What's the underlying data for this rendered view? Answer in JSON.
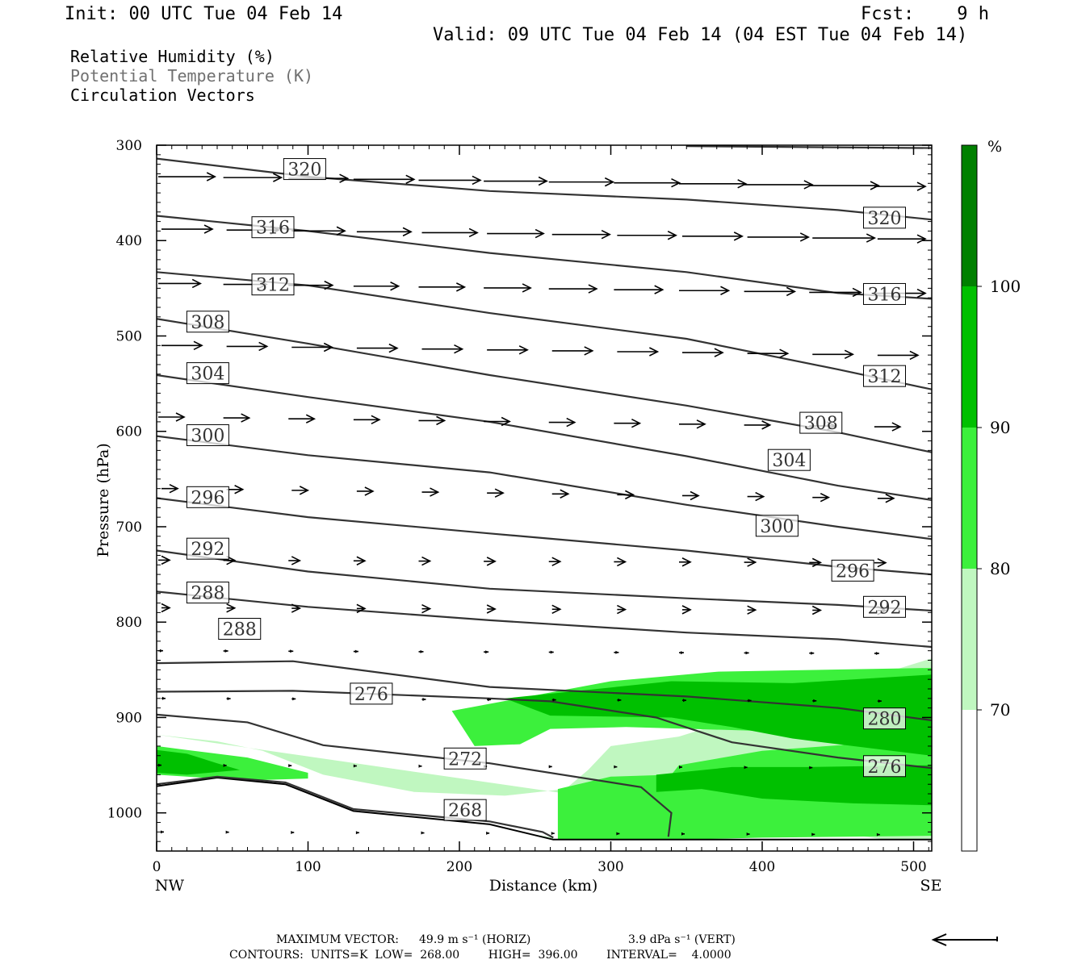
{
  "header": {
    "init": "Init: 00 UTC Tue 04 Feb 14",
    "fcst": "Fcst:    9 h",
    "valid": "Valid: 09 UTC Tue 04 Feb 14 (04 EST Tue 04 Feb 14)"
  },
  "legend": {
    "line1": "Relative Humidity (%)",
    "line2": "Potential Temperature (K)",
    "line3": "Circulation Vectors"
  },
  "footer": {
    "max_vector_label": "MAXIMUM VECTOR:",
    "max_vector_horiz": "49.9 m s⁻¹ (HORIZ)",
    "max_vector_vert": "3.9 dPa s⁻¹ (VERT)",
    "contours": "CONTOURS:  UNITS=K  LOW=  268.00        HIGH=  396.00        INTERVAL=    4.0000"
  },
  "colors": {
    "rh_70_80": "#c0f7c0",
    "rh_80_90": "#3cf03c",
    "rh_90_100": "#00c000",
    "rh_100": "#008000",
    "theta_line": "#333333"
  },
  "chart_data": {
    "type": "cross-section",
    "xlabel": "Distance (km)",
    "ylabel": "Pressure (hPa)",
    "xlim": [
      0,
      512
    ],
    "ylim": [
      1040,
      300
    ],
    "x_ticks": [
      0,
      100,
      200,
      300,
      400,
      500
    ],
    "y_ticks": [
      300,
      400,
      500,
      600,
      700,
      800,
      900,
      1000
    ],
    "x_end_labels": {
      "left": "NW",
      "right": "SE"
    },
    "colorbar": {
      "unit": "%",
      "levels": [
        70,
        80,
        90,
        100
      ]
    },
    "theta_contours": [
      {
        "value": 320,
        "points": [
          [
            0,
            314
          ],
          [
            100,
            333
          ],
          [
            220,
            348
          ],
          [
            350,
            357
          ],
          [
            450,
            368
          ],
          [
            512,
            378
          ]
        ],
        "labels": [
          [
            85,
            325
          ],
          [
            468,
            376
          ]
        ]
      },
      {
        "value": 316,
        "points": [
          [
            0,
            374
          ],
          [
            100,
            390
          ],
          [
            220,
            413
          ],
          [
            350,
            433
          ],
          [
            450,
            455
          ],
          [
            512,
            461
          ]
        ],
        "labels": [
          [
            64,
            386
          ],
          [
            468,
            456
          ]
        ]
      },
      {
        "value": 312,
        "points": [
          [
            0,
            433
          ],
          [
            100,
            447
          ],
          [
            220,
            476
          ],
          [
            350,
            503
          ],
          [
            450,
            535
          ],
          [
            512,
            556
          ]
        ],
        "labels": [
          [
            64,
            446
          ],
          [
            468,
            542
          ]
        ]
      },
      {
        "value": 308,
        "points": [
          [
            0,
            482
          ],
          [
            100,
            508
          ],
          [
            220,
            541
          ],
          [
            350,
            573
          ],
          [
            450,
            601
          ],
          [
            512,
            622
          ]
        ],
        "labels": [
          [
            21,
            485
          ],
          [
            426,
            591
          ]
        ]
      },
      {
        "value": 304,
        "points": [
          [
            0,
            541
          ],
          [
            100,
            564
          ],
          [
            220,
            590
          ],
          [
            350,
            626
          ],
          [
            450,
            657
          ],
          [
            512,
            672
          ]
        ],
        "labels": [
          [
            21,
            539
          ],
          [
            405,
            630
          ]
        ]
      },
      {
        "value": 300,
        "points": [
          [
            0,
            605
          ],
          [
            100,
            625
          ],
          [
            220,
            643
          ],
          [
            350,
            677
          ],
          [
            450,
            700
          ],
          [
            512,
            713
          ]
        ],
        "labels": [
          [
            21,
            604
          ],
          [
            397,
            699
          ]
        ]
      },
      {
        "value": 296,
        "points": [
          [
            0,
            670
          ],
          [
            100,
            690
          ],
          [
            220,
            707
          ],
          [
            350,
            725
          ],
          [
            450,
            742
          ],
          [
            512,
            750
          ]
        ],
        "labels": [
          [
            21,
            669
          ],
          [
            447,
            746
          ]
        ]
      },
      {
        "value": 292,
        "points": [
          [
            0,
            725
          ],
          [
            100,
            747
          ],
          [
            220,
            765
          ],
          [
            350,
            775
          ],
          [
            450,
            782
          ],
          [
            512,
            788
          ]
        ],
        "labels": [
          [
            21,
            723
          ],
          [
            468,
            784
          ]
        ]
      },
      {
        "value": 288,
        "points": [
          [
            0,
            768
          ],
          [
            100,
            784
          ],
          [
            220,
            798
          ],
          [
            350,
            811
          ],
          [
            450,
            818
          ],
          [
            512,
            826
          ]
        ],
        "labels": [
          [
            21,
            769
          ],
          [
            42,
            807
          ]
        ]
      },
      {
        "value": 280,
        "points": [
          [
            0,
            843
          ],
          [
            90,
            841
          ],
          [
            220,
            868
          ],
          [
            350,
            878
          ],
          [
            450,
            890
          ],
          [
            512,
            903
          ]
        ],
        "labels": [
          [
            468,
            901
          ]
        ]
      },
      {
        "value": 276,
        "points": [
          [
            0,
            873
          ],
          [
            90,
            872
          ],
          [
            220,
            880
          ],
          [
            260,
            883
          ],
          [
            330,
            900
          ],
          [
            380,
            926
          ],
          [
            450,
            942
          ],
          [
            512,
            953
          ]
        ],
        "labels": [
          [
            129,
            875
          ],
          [
            468,
            951
          ]
        ]
      },
      {
        "value": 272,
        "points": [
          [
            0,
            897
          ],
          [
            60,
            905
          ],
          [
            110,
            929
          ],
          [
            220,
            948
          ],
          [
            320,
            973
          ],
          [
            340,
            1000
          ],
          [
            338,
            1025
          ]
        ],
        "labels": [
          [
            191,
            943
          ]
        ]
      },
      {
        "value": 268,
        "points": [
          [
            0,
            970
          ],
          [
            40,
            962
          ],
          [
            85,
            968
          ],
          [
            130,
            996
          ],
          [
            220,
            1009
          ],
          [
            255,
            1020
          ],
          [
            262,
            1026
          ]
        ],
        "labels": [
          [
            191,
            997
          ]
        ]
      }
    ],
    "rh_regions": [
      {
        "level": "70-80",
        "points": [
          [
            0,
            918
          ],
          [
            40,
            925
          ],
          [
            70,
            935
          ],
          [
            110,
            960
          ],
          [
            170,
            978
          ],
          [
            230,
            982
          ],
          [
            270,
            975
          ],
          [
            285,
            955
          ],
          [
            300,
            930
          ],
          [
            345,
            920
          ],
          [
            512,
            838
          ],
          [
            512,
            1028
          ],
          [
            0,
            1028
          ],
          [
            0,
            985
          ],
          [
            40,
            975
          ],
          [
            95,
            978
          ],
          [
            130,
            1000
          ],
          [
            220,
            1015
          ],
          [
            262,
            1026
          ],
          [
            262,
            1035
          ],
          [
            512,
            1035
          ]
        ]
      },
      {
        "level": "80-90",
        "points": [
          [
            0,
            930
          ],
          [
            20,
            934
          ],
          [
            60,
            942
          ],
          [
            100,
            958
          ],
          [
            100,
            964
          ],
          [
            60,
            966
          ],
          [
            0,
            960
          ]
        ]
      },
      {
        "level": "80-90",
        "points": [
          [
            195,
            893
          ],
          [
            300,
            862
          ],
          [
            370,
            852
          ],
          [
            512,
            848
          ],
          [
            512,
            1024
          ],
          [
            400,
            1026
          ],
          [
            300,
            1030
          ],
          [
            265,
            1030
          ],
          [
            265,
            975
          ],
          [
            300,
            962
          ],
          [
            340,
            960
          ],
          [
            345,
            950
          ],
          [
            400,
            935
          ],
          [
            460,
            928
          ],
          [
            420,
            915
          ],
          [
            310,
            910
          ],
          [
            260,
            912
          ],
          [
            240,
            928
          ],
          [
            210,
            930
          ]
        ]
      },
      {
        "level": "90-100",
        "points": [
          [
            0,
            934
          ],
          [
            20,
            938
          ],
          [
            40,
            948
          ],
          [
            55,
            955
          ],
          [
            20,
            960
          ],
          [
            0,
            958
          ]
        ]
      },
      {
        "level": "90-100",
        "points": [
          [
            230,
            880
          ],
          [
            340,
            862
          ],
          [
            420,
            864
          ],
          [
            512,
            855
          ],
          [
            512,
            992
          ],
          [
            460,
            990
          ],
          [
            400,
            985
          ],
          [
            360,
            975
          ],
          [
            330,
            978
          ],
          [
            330,
            960
          ],
          [
            380,
            952
          ],
          [
            430,
            952
          ],
          [
            512,
            950
          ],
          [
            512,
            940
          ],
          [
            460,
            930
          ],
          [
            420,
            922
          ],
          [
            380,
            910
          ],
          [
            340,
            900
          ],
          [
            260,
            898
          ]
        ]
      }
    ]
  }
}
